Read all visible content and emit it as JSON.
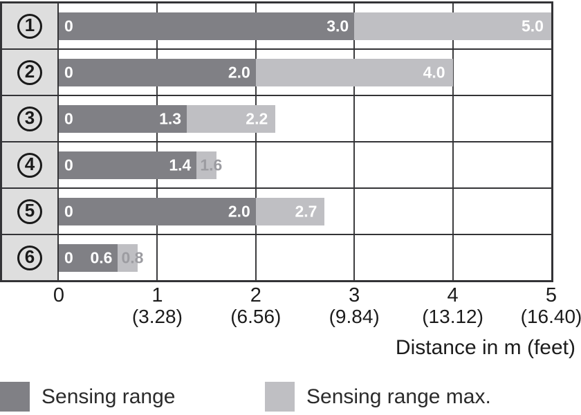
{
  "chart_data": {
    "type": "bar",
    "orientation": "horizontal",
    "xlabel": "Distance in m (feet)",
    "xlim": [
      0,
      5
    ],
    "grid": true,
    "x_ticks": [
      {
        "m": "0",
        "feet": ""
      },
      {
        "m": "1",
        "feet": "(3.28)"
      },
      {
        "m": "2",
        "feet": "(6.56)"
      },
      {
        "m": "3",
        "feet": "(9.84)"
      },
      {
        "m": "4",
        "feet": "(13.12)"
      },
      {
        "m": "5",
        "feet": "(16.40)"
      }
    ],
    "rows": [
      {
        "id": "1",
        "zero_label": "0",
        "sensing_range": 3.0,
        "sensing_range_label": "3.0",
        "sensing_range_max": 5.0,
        "sensing_range_max_label": "5.0",
        "max_label_placement": "inside"
      },
      {
        "id": "2",
        "zero_label": "0",
        "sensing_range": 2.0,
        "sensing_range_label": "2.0",
        "sensing_range_max": 4.0,
        "sensing_range_max_label": "4.0",
        "max_label_placement": "inside"
      },
      {
        "id": "3",
        "zero_label": "0",
        "sensing_range": 1.3,
        "sensing_range_label": "1.3",
        "sensing_range_max": 2.2,
        "sensing_range_max_label": "2.2",
        "max_label_placement": "inside"
      },
      {
        "id": "4",
        "zero_label": "0",
        "sensing_range": 1.4,
        "sensing_range_label": "1.4",
        "sensing_range_max": 1.6,
        "sensing_range_max_label": "1.6",
        "max_label_placement": "outside"
      },
      {
        "id": "5",
        "zero_label": "0",
        "sensing_range": 2.0,
        "sensing_range_label": "2.0",
        "sensing_range_max": 2.7,
        "sensing_range_max_label": "2.7",
        "max_label_placement": "inside"
      },
      {
        "id": "6",
        "zero_label": "0",
        "sensing_range": 0.6,
        "sensing_range_label": "0.6",
        "sensing_range_max": 0.8,
        "sensing_range_max_label": "0.8",
        "max_label_placement": "outside"
      }
    ],
    "legend": [
      {
        "label": "Sensing range",
        "color": "#808085"
      },
      {
        "label": "Sensing range max.",
        "color": "#bfbfc3"
      }
    ],
    "colors": {
      "sensing_range": "#808085",
      "sensing_range_max": "#bfbfc3",
      "grid_line": "#3c3c3e",
      "border": "#333336",
      "row_header_bg": "#dedede",
      "inside_label_text": "#ffffff",
      "outside_label_text": "#9c9ca1"
    }
  }
}
